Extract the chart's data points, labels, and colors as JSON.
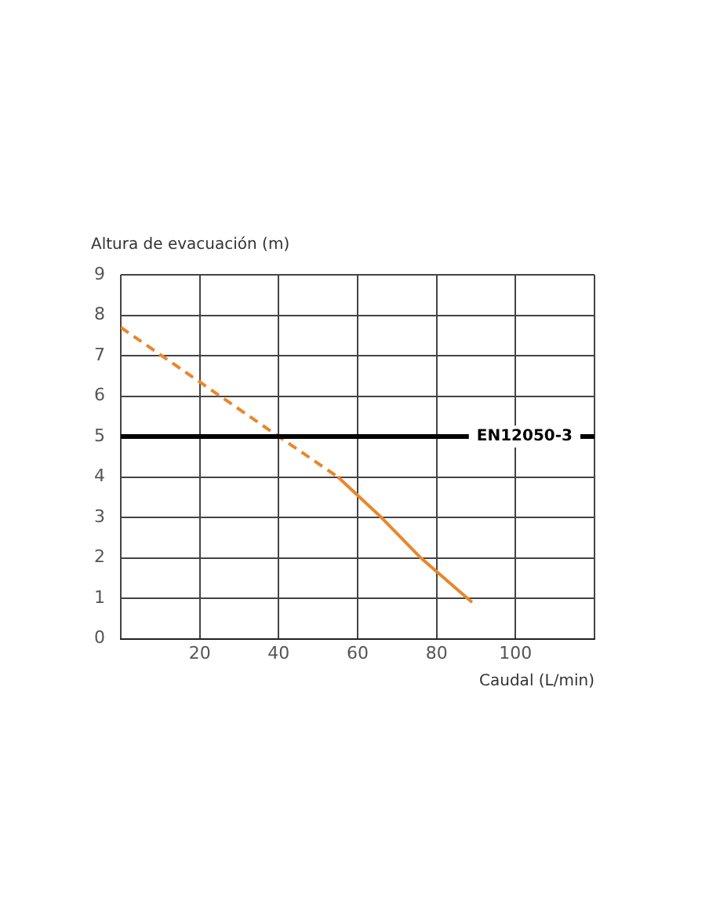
{
  "chart_data": {
    "type": "line",
    "xlabel": "Caudal (L/min)",
    "ylabel": "Altura de evacuación (m)",
    "series": [
      {
        "color": "#e8872a",
        "line_style": "dashed",
        "x": [
          0,
          40,
          55
        ],
        "values": [
          7.7,
          5,
          4
        ]
      },
      {
        "color": "#e8872a",
        "line_style": "solid",
        "x": [
          55,
          66,
          76,
          89
        ],
        "values": [
          4,
          3,
          2,
          0.9
        ]
      }
    ],
    "xlim": [
      0,
      120
    ],
    "xticks": [
      {
        "value": 0,
        "label": null
      },
      20,
      40,
      60,
      80,
      100,
      {
        "value": 120,
        "label": null
      }
    ],
    "ylim": [
      0,
      9
    ],
    "yticks": [
      0,
      1,
      2,
      3,
      4,
      5,
      6,
      7,
      8,
      9
    ],
    "ref_lines": [
      {
        "axis": "y",
        "value": 5,
        "label": "EN12050-3",
        "color": "#000000"
      }
    ],
    "grid": true,
    "legend": false,
    "marker": "none"
  }
}
